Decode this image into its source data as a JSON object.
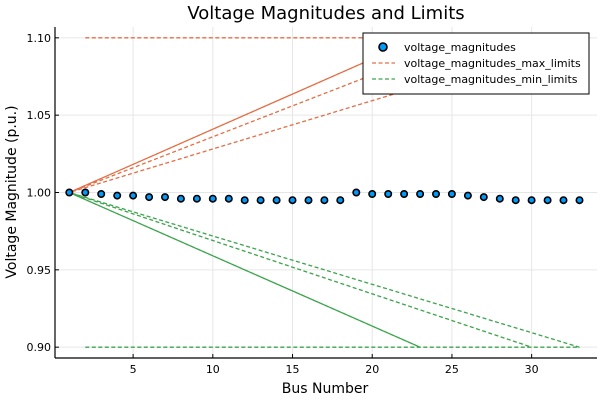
{
  "chart_data": {
    "type": "scatter",
    "title": "Voltage Magnitudes and Limits",
    "xlabel": "Bus Number",
    "ylabel": "Voltage Magnitude (p.u.)",
    "xlim": [
      0.1,
      34.1
    ],
    "ylim": [
      0.893,
      1.107
    ],
    "x_ticks": [
      5,
      10,
      15,
      20,
      25,
      30
    ],
    "y_ticks": [
      0.9,
      0.95,
      1.0,
      1.05,
      1.1
    ],
    "x_tick_labels": [
      "5",
      "10",
      "15",
      "20",
      "25",
      "30"
    ],
    "y_tick_labels": [
      "0.90",
      "0.95",
      "1.00",
      "1.05",
      "1.10"
    ],
    "grid": true,
    "legend_position": "top-right",
    "colors": {
      "voltage_magnitudes": "#009AFA",
      "voltage_magnitudes_max_limits": "#E26F46",
      "voltage_magnitudes_min_limits": "#3DA44D"
    },
    "series": [
      {
        "name": "voltage_magnitudes",
        "kind": "scatter",
        "x": [
          1,
          2,
          3,
          4,
          5,
          6,
          7,
          8,
          9,
          10,
          11,
          12,
          13,
          14,
          15,
          16,
          17,
          18,
          19,
          20,
          21,
          22,
          23,
          24,
          25,
          26,
          27,
          28,
          29,
          30,
          31,
          32,
          33
        ],
        "y": [
          1.0,
          1.0,
          0.999,
          0.998,
          0.998,
          0.997,
          0.997,
          0.996,
          0.996,
          0.996,
          0.996,
          0.995,
          0.995,
          0.995,
          0.995,
          0.995,
          0.995,
          0.995,
          1.0,
          0.999,
          0.999,
          0.999,
          0.999,
          0.999,
          0.999,
          0.998,
          0.997,
          0.996,
          0.995,
          0.995,
          0.995,
          0.995,
          0.995
        ]
      },
      {
        "name": "voltage_magnitudes_max_limits",
        "kind": "dashed-line",
        "x": [
          2,
          3,
          4,
          5,
          6,
          7,
          8,
          9,
          10,
          11,
          12,
          13,
          14,
          15,
          16,
          17,
          18,
          19,
          20,
          21,
          22,
          23,
          24,
          25,
          26,
          27,
          28,
          29,
          30,
          31,
          32,
          33,
          1,
          23,
          1,
          26
        ],
        "y": [
          1.1,
          1.1,
          1.1,
          1.1,
          1.1,
          1.1,
          1.1,
          1.1,
          1.1,
          1.1,
          1.1,
          1.1,
          1.1,
          1.1,
          1.1,
          1.1,
          1.1,
          1.1,
          1.1,
          1.1,
          1.1,
          1.1,
          1.1,
          1.1,
          1.1,
          1.1,
          1.1,
          1.1,
          1.1,
          1.1,
          1.1,
          1.1,
          1.0,
          1.1,
          1.0,
          1.1
        ]
      },
      {
        "name": "voltage_magnitudes_min_limits",
        "kind": "dashed-line",
        "x": [
          2,
          3,
          4,
          5,
          6,
          7,
          8,
          9,
          10,
          11,
          12,
          13,
          14,
          15,
          16,
          17,
          18,
          19,
          20,
          21,
          22,
          23,
          24,
          25,
          26,
          27,
          28,
          29,
          30,
          31,
          32,
          33,
          1,
          23,
          1,
          30
        ],
        "y": [
          0.9,
          0.9,
          0.9,
          0.9,
          0.9,
          0.9,
          0.9,
          0.9,
          0.9,
          0.9,
          0.9,
          0.9,
          0.9,
          0.9,
          0.9,
          0.9,
          0.9,
          0.9,
          0.9,
          0.9,
          0.9,
          0.9,
          0.9,
          0.9,
          0.9,
          0.9,
          0.9,
          0.9,
          0.9,
          0.9,
          0.9,
          0.9,
          1.0,
          0.9,
          1.0,
          0.9
        ]
      }
    ]
  }
}
